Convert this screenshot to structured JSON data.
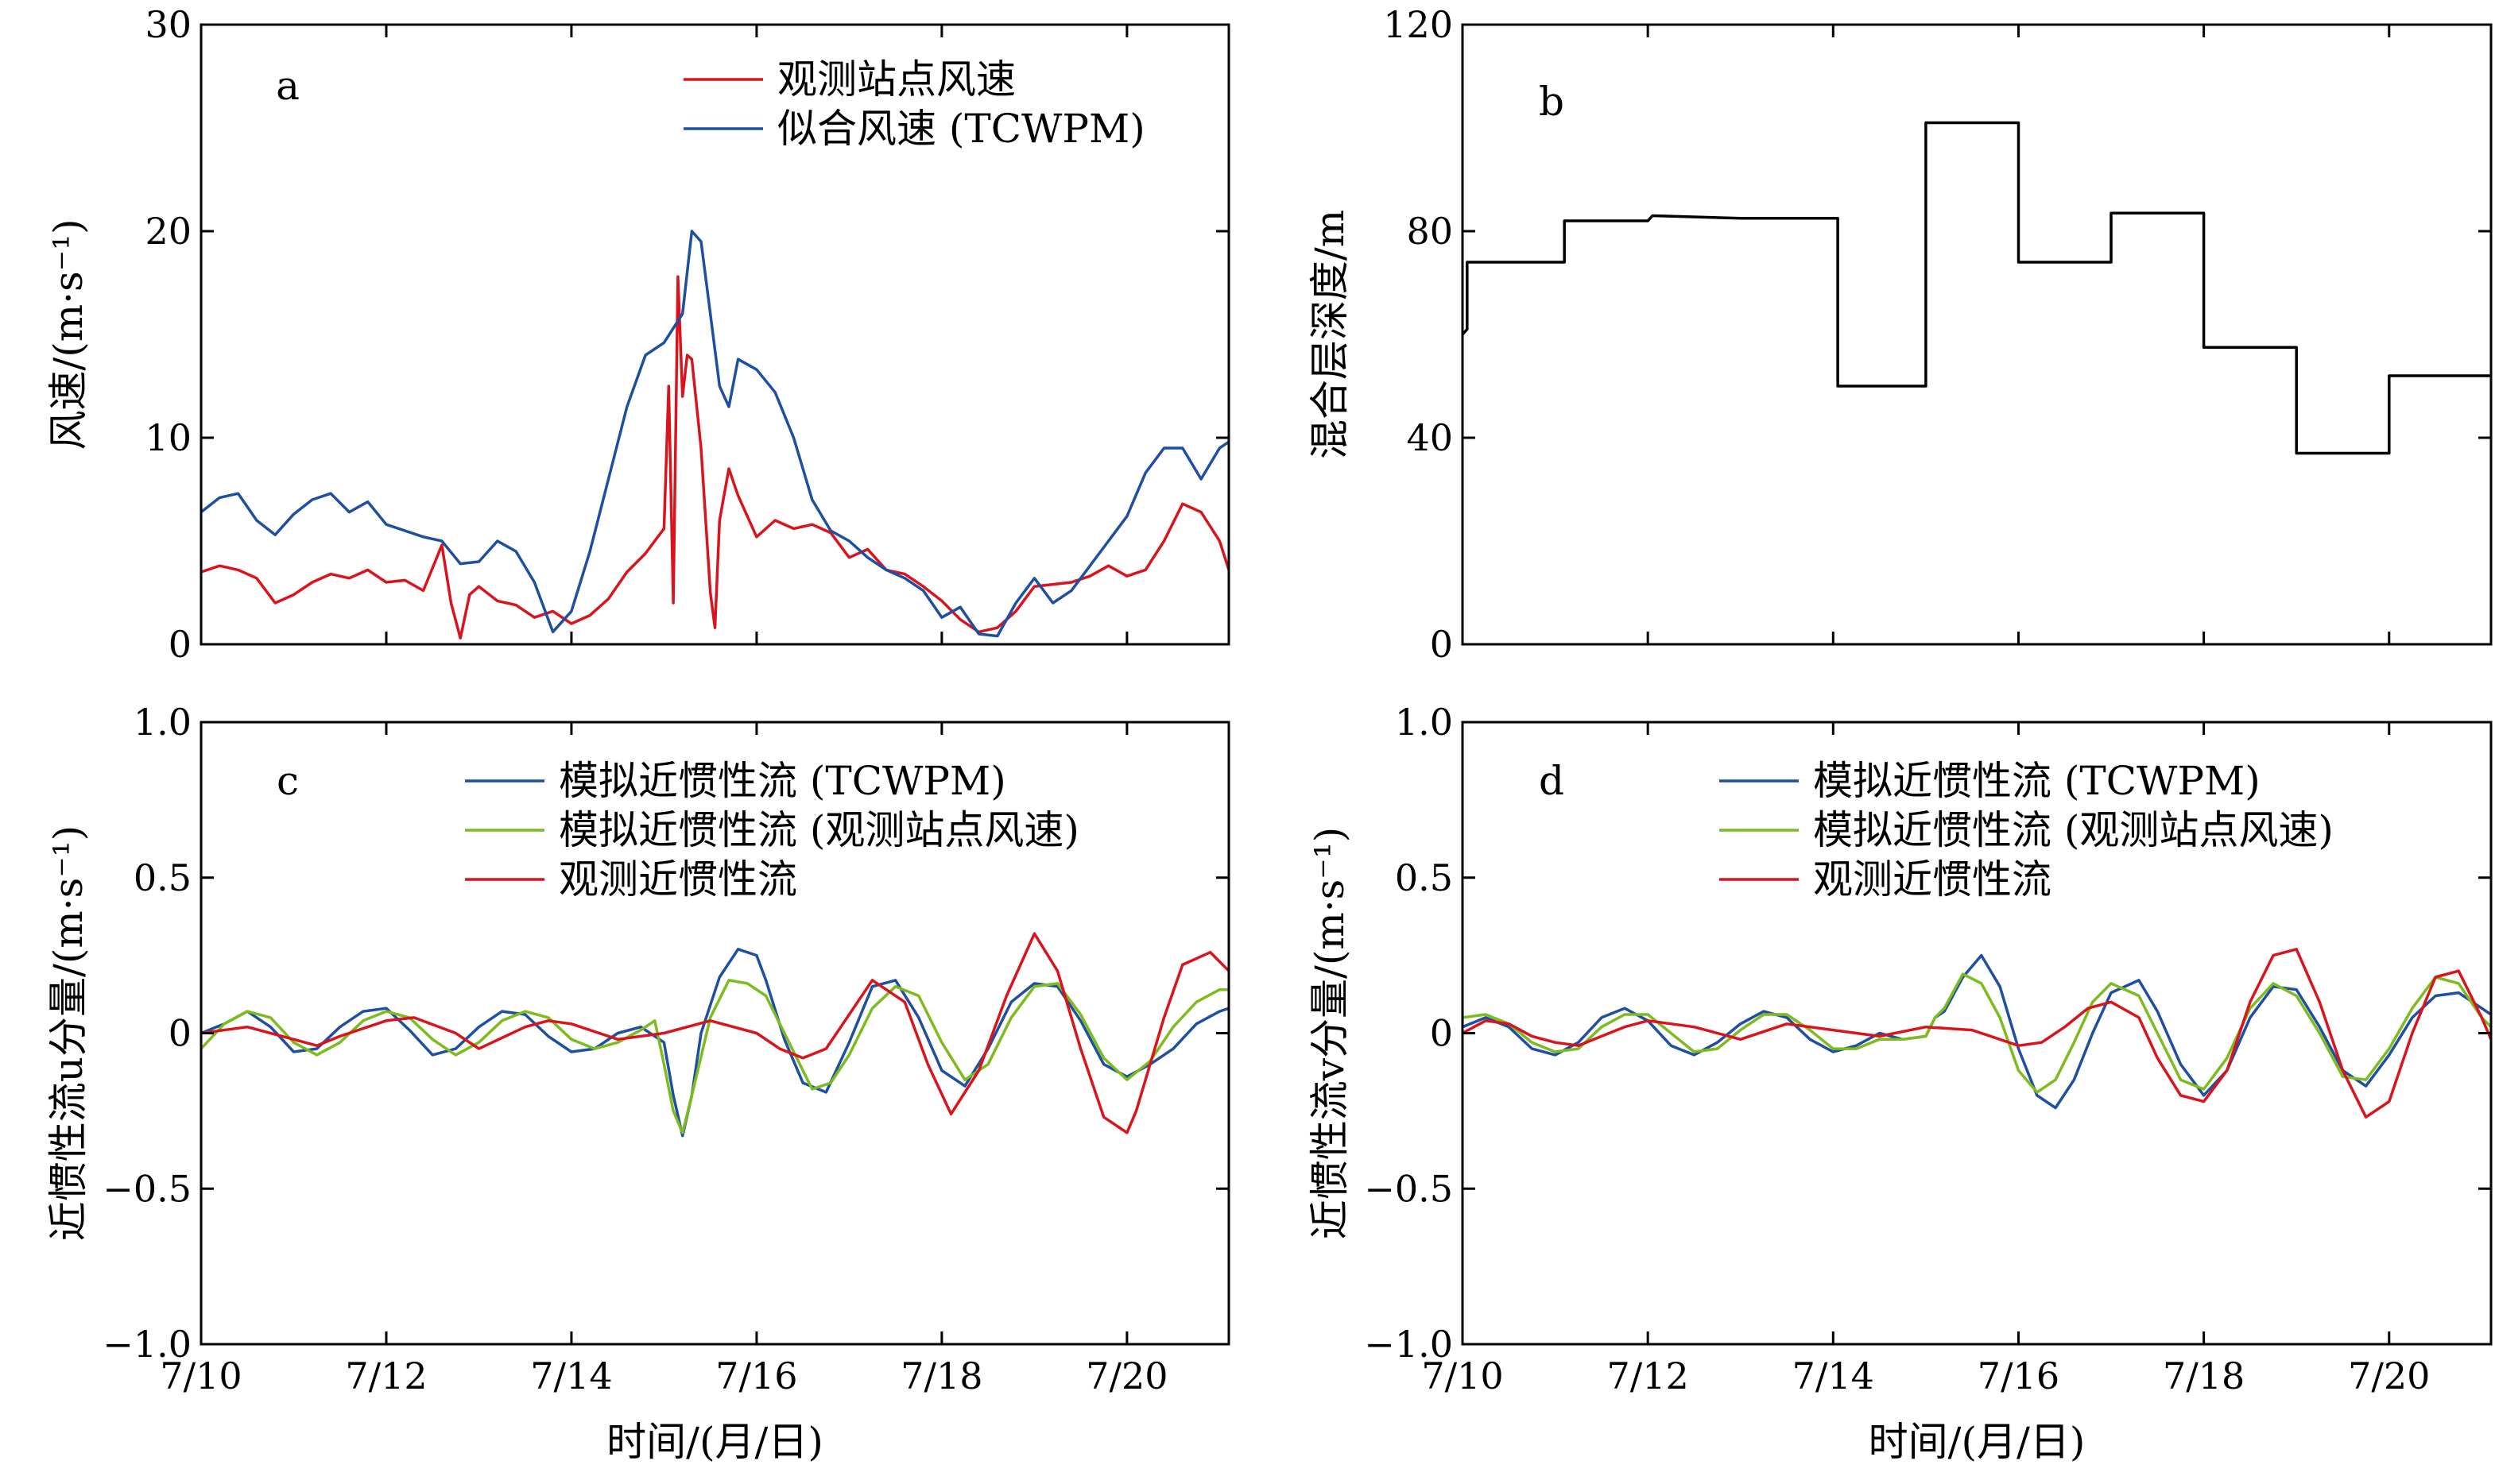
{
  "xlabel": "时间/(月/日)",
  "x_tick_labels": [
    "7/10",
    "7/12",
    "7/14",
    "7/16",
    "7/18",
    "7/20"
  ],
  "colors": {
    "observed_wind": "#d9141c",
    "tcwpm": "#1f4fa0",
    "sim_station": "#7dbb1e",
    "observed_current": "#d9141c",
    "mixed_layer": "#000000"
  },
  "chart_data": [
    {
      "panel": "a",
      "type": "line",
      "ylabel": "风速/(m·s⁻¹)",
      "ylim": [
        0,
        30
      ],
      "yticks": [
        0,
        10,
        20,
        30
      ],
      "xlim": [
        10,
        21.1
      ],
      "series": [
        {
          "name": "观测站点风速",
          "x": [
            10,
            10.2,
            10.4,
            10.6,
            10.8,
            11,
            11.2,
            11.4,
            11.6,
            11.8,
            12,
            12.2,
            12.4,
            12.6,
            12.7,
            12.8,
            12.9,
            13.0,
            13.2,
            13.4,
            13.6,
            13.8,
            14.0,
            14.2,
            14.4,
            14.6,
            14.8,
            15.0,
            15.05,
            15.1,
            15.15,
            15.2,
            15.25,
            15.3,
            15.4,
            15.5,
            15.55,
            15.6,
            15.7,
            15.8,
            16.0,
            16.2,
            16.4,
            16.6,
            16.8,
            17.0,
            17.2,
            17.4,
            17.6,
            17.8,
            18.0,
            18.2,
            18.4,
            18.6,
            18.8,
            19.0,
            19.2,
            19.4,
            19.6,
            19.8,
            20.0,
            20.2,
            20.4,
            20.6,
            20.8,
            21.0,
            21.1
          ],
          "y": [
            3.5,
            3.8,
            3.6,
            3.2,
            2.0,
            2.4,
            3.0,
            3.4,
            3.2,
            3.6,
            3.0,
            3.1,
            2.6,
            4.8,
            2.0,
            0.3,
            2.4,
            2.8,
            2.1,
            1.9,
            1.3,
            1.6,
            1.0,
            1.4,
            2.2,
            3.5,
            4.4,
            5.6,
            12.5,
            2.0,
            17.8,
            12.0,
            14.0,
            13.8,
            9.5,
            2.5,
            0.8,
            6.0,
            8.5,
            7.2,
            5.2,
            6.0,
            5.6,
            5.8,
            5.4,
            4.2,
            4.6,
            3.6,
            3.4,
            2.8,
            2.1,
            1.2,
            0.6,
            0.8,
            1.6,
            2.8,
            2.9,
            3.0,
            3.3,
            3.8,
            3.3,
            3.6,
            5.0,
            6.8,
            6.4,
            5.0,
            3.6
          ]
        },
        {
          "name": "似合风速 (TCWPM)",
          "x": [
            10,
            10.2,
            10.4,
            10.6,
            10.8,
            11,
            11.2,
            11.4,
            11.6,
            11.8,
            12,
            12.2,
            12.4,
            12.6,
            12.8,
            13.0,
            13.2,
            13.4,
            13.6,
            13.8,
            14.0,
            14.2,
            14.4,
            14.6,
            14.8,
            15.0,
            15.2,
            15.3,
            15.4,
            15.5,
            15.6,
            15.7,
            15.8,
            16.0,
            16.2,
            16.4,
            16.6,
            16.8,
            17.0,
            17.2,
            17.4,
            17.6,
            17.8,
            18.0,
            18.2,
            18.4,
            18.6,
            18.8,
            19.0,
            19.2,
            19.4,
            19.6,
            19.8,
            20.0,
            20.2,
            20.4,
            20.6,
            20.8,
            21.0,
            21.1
          ],
          "y": [
            6.4,
            7.1,
            7.3,
            6.0,
            5.3,
            6.3,
            7.0,
            7.3,
            6.4,
            6.9,
            5.8,
            5.5,
            5.2,
            5.0,
            3.9,
            4.0,
            5.0,
            4.5,
            3.0,
            0.6,
            1.6,
            4.5,
            8.0,
            11.5,
            14.0,
            14.6,
            16.0,
            20.0,
            19.5,
            16.0,
            12.5,
            11.5,
            13.8,
            13.3,
            12.2,
            10.0,
            7.0,
            5.5,
            5.0,
            4.2,
            3.6,
            3.2,
            2.6,
            1.3,
            1.8,
            0.5,
            0.4,
            2.0,
            3.2,
            2.0,
            2.6,
            3.8,
            5.0,
            6.2,
            8.3,
            9.5,
            9.5,
            8.0,
            9.5,
            9.8
          ]
        }
      ]
    },
    {
      "panel": "b",
      "type": "line",
      "ylabel": "混合层深度/m",
      "ylim": [
        0,
        120
      ],
      "yticks": [
        0,
        40,
        80,
        120
      ],
      "xlim": [
        10,
        21.1
      ],
      "series": [
        {
          "name": "",
          "x": [
            10.0,
            10.05,
            10.05,
            11.1,
            11.1,
            12.0,
            12.05,
            13.0,
            14.05,
            14.05,
            15.0,
            15.0,
            16.0,
            16.0,
            17.0,
            17.0,
            18.0,
            18.0,
            19.0,
            19.0,
            20.0,
            20.0,
            21.1
          ],
          "y": [
            60,
            61,
            74,
            74,
            82,
            82,
            83,
            82.5,
            82.5,
            50,
            50,
            101,
            101,
            74,
            74,
            83.5,
            83.5,
            57.5,
            57.5,
            37,
            37,
            52,
            52
          ]
        }
      ]
    },
    {
      "panel": "c",
      "type": "line",
      "ylabel": "近惯性流u分量/(m·s⁻¹)",
      "ylim": [
        -1.0,
        1.0
      ],
      "yticks": [
        -1.0,
        -0.5,
        0,
        0.5,
        1.0
      ],
      "xlim": [
        10,
        21.1
      ],
      "series": [
        {
          "name": "模拟近惯性流 (TCWPM)",
          "x": [
            10,
            10.25,
            10.5,
            10.75,
            11,
            11.25,
            11.5,
            11.75,
            12,
            12.25,
            12.5,
            12.75,
            13,
            13.25,
            13.5,
            13.75,
            14,
            14.25,
            14.5,
            14.75,
            15.0,
            15.1,
            15.2,
            15.3,
            15.4,
            15.6,
            15.8,
            16.0,
            16.1,
            16.3,
            16.5,
            16.75,
            17.0,
            17.25,
            17.5,
            17.75,
            18.0,
            18.25,
            18.5,
            18.75,
            19.0,
            19.25,
            19.5,
            19.75,
            20.0,
            20.25,
            20.5,
            20.75,
            21.0,
            21.1
          ],
          "y": [
            0.0,
            0.03,
            0.07,
            0.02,
            -0.06,
            -0.05,
            0.02,
            0.07,
            0.08,
            0.01,
            -0.07,
            -0.05,
            0.02,
            0.07,
            0.06,
            -0.01,
            -0.06,
            -0.05,
            0.0,
            0.02,
            -0.03,
            -0.2,
            -0.33,
            -0.2,
            0.0,
            0.18,
            0.27,
            0.25,
            0.17,
            -0.02,
            -0.16,
            -0.19,
            -0.03,
            0.15,
            0.17,
            0.05,
            -0.12,
            -0.17,
            -0.05,
            0.1,
            0.16,
            0.15,
            0.04,
            -0.1,
            -0.14,
            -0.1,
            -0.05,
            0.03,
            0.07,
            0.08
          ]
        },
        {
          "name": "模拟近惯性流 (观测站点风速)",
          "x": [
            10,
            10.25,
            10.5,
            10.75,
            11,
            11.25,
            11.5,
            11.75,
            12,
            12.25,
            12.5,
            12.75,
            13,
            13.25,
            13.5,
            13.75,
            14,
            14.25,
            14.5,
            14.75,
            14.9,
            15.0,
            15.1,
            15.2,
            15.3,
            15.5,
            15.7,
            15.9,
            16.1,
            16.3,
            16.6,
            16.8,
            17.0,
            17.25,
            17.5,
            17.75,
            18.0,
            18.25,
            18.5,
            18.75,
            19.0,
            19.25,
            19.5,
            19.75,
            20.0,
            20.25,
            20.5,
            20.75,
            21.0,
            21.1
          ],
          "y": [
            -0.05,
            0.03,
            0.07,
            0.05,
            -0.03,
            -0.07,
            -0.03,
            0.04,
            0.07,
            0.05,
            -0.02,
            -0.07,
            -0.03,
            0.04,
            0.07,
            0.05,
            -0.02,
            -0.05,
            -0.03,
            0.01,
            0.04,
            -0.1,
            -0.25,
            -0.32,
            -0.2,
            0.05,
            0.17,
            0.16,
            0.12,
            0.0,
            -0.18,
            -0.16,
            -0.07,
            0.08,
            0.15,
            0.12,
            -0.03,
            -0.15,
            -0.1,
            0.05,
            0.15,
            0.16,
            0.06,
            -0.08,
            -0.15,
            -0.09,
            0.02,
            0.1,
            0.14,
            0.14
          ]
        },
        {
          "name": "观测近惯性流",
          "x": [
            10,
            10.5,
            11,
            11.25,
            11.5,
            12,
            12.3,
            12.75,
            13,
            13.5,
            13.75,
            14,
            14.5,
            15,
            15.5,
            16,
            16.25,
            16.5,
            16.75,
            17,
            17.25,
            17.6,
            17.85,
            18.1,
            18.4,
            18.7,
            19.0,
            19.25,
            19.5,
            19.75,
            20.0,
            20.1,
            20.4,
            20.6,
            20.9,
            21.1
          ],
          "y": [
            0.0,
            0.02,
            -0.02,
            -0.04,
            -0.01,
            0.04,
            0.05,
            0.0,
            -0.05,
            0.02,
            0.04,
            0.03,
            -0.02,
            0.0,
            0.04,
            0.0,
            -0.05,
            -0.08,
            -0.05,
            0.06,
            0.17,
            0.1,
            -0.1,
            -0.26,
            -0.12,
            0.12,
            0.32,
            0.2,
            -0.05,
            -0.27,
            -0.32,
            -0.25,
            0.05,
            0.22,
            0.26,
            0.2
          ]
        }
      ]
    },
    {
      "panel": "d",
      "type": "line",
      "ylabel": "近惯性流v分量/(m·s⁻¹)",
      "ylim": [
        -1.0,
        1.0
      ],
      "yticks": [
        -1.0,
        -0.5,
        0,
        0.5,
        1.0
      ],
      "xlim": [
        10,
        21.1
      ],
      "series": [
        {
          "name": "模拟近惯性流 (TCWPM)",
          "x": [
            10,
            10.25,
            10.5,
            10.75,
            11,
            11.25,
            11.5,
            11.75,
            12,
            12.25,
            12.5,
            12.75,
            13,
            13.25,
            13.5,
            13.75,
            14,
            14.25,
            14.5,
            14.75,
            15.0,
            15.1,
            15.2,
            15.4,
            15.6,
            15.8,
            16.0,
            16.2,
            16.4,
            16.6,
            16.8,
            17.0,
            17.3,
            17.5,
            17.75,
            18.0,
            18.25,
            18.5,
            18.75,
            19.0,
            19.25,
            19.5,
            19.75,
            20.0,
            20.25,
            20.5,
            20.75,
            21.0,
            21.1
          ],
          "y": [
            0.02,
            0.05,
            0.02,
            -0.05,
            -0.07,
            -0.03,
            0.05,
            0.08,
            0.04,
            -0.04,
            -0.07,
            -0.03,
            0.03,
            0.07,
            0.05,
            -0.02,
            -0.06,
            -0.04,
            0.0,
            -0.02,
            -0.01,
            0.05,
            0.07,
            0.18,
            0.25,
            0.15,
            -0.05,
            -0.2,
            -0.24,
            -0.15,
            0.0,
            0.13,
            0.17,
            0.07,
            -0.1,
            -0.2,
            -0.12,
            0.05,
            0.15,
            0.14,
            0.02,
            -0.12,
            -0.17,
            -0.07,
            0.05,
            0.12,
            0.13,
            0.08,
            0.06
          ]
        },
        {
          "name": "模拟近惯性流 (观测站点风速)",
          "x": [
            10,
            10.25,
            10.5,
            10.75,
            11,
            11.25,
            11.5,
            11.75,
            12,
            12.25,
            12.5,
            12.75,
            13,
            13.25,
            13.5,
            13.75,
            14,
            14.25,
            14.5,
            14.75,
            15.0,
            15.1,
            15.2,
            15.4,
            15.6,
            15.8,
            16.0,
            16.2,
            16.4,
            16.6,
            16.8,
            17.0,
            17.3,
            17.5,
            17.75,
            18.0,
            18.25,
            18.5,
            18.75,
            19.0,
            19.25,
            19.5,
            19.75,
            20.0,
            20.25,
            20.5,
            20.75,
            21.0,
            21.1
          ],
          "y": [
            0.05,
            0.06,
            0.03,
            -0.03,
            -0.06,
            -0.05,
            0.02,
            0.06,
            0.06,
            0.0,
            -0.06,
            -0.05,
            0.01,
            0.06,
            0.06,
            0.01,
            -0.05,
            -0.05,
            -0.02,
            -0.02,
            -0.01,
            0.05,
            0.08,
            0.19,
            0.16,
            0.05,
            -0.12,
            -0.19,
            -0.15,
            -0.03,
            0.1,
            0.16,
            0.12,
            0.0,
            -0.15,
            -0.18,
            -0.08,
            0.08,
            0.16,
            0.12,
            0.0,
            -0.14,
            -0.15,
            -0.05,
            0.08,
            0.18,
            0.16,
            0.05,
            0.02
          ]
        },
        {
          "name": "观测近惯性流",
          "x": [
            10,
            10.25,
            10.5,
            10.75,
            11,
            11.25,
            11.5,
            11.75,
            12,
            12.5,
            13,
            13.5,
            14,
            14.5,
            15,
            15.5,
            16,
            16.25,
            16.5,
            16.75,
            17,
            17.3,
            17.5,
            17.75,
            18.0,
            18.25,
            18.5,
            18.75,
            19.0,
            19.25,
            19.5,
            19.75,
            20.0,
            20.25,
            20.5,
            20.75,
            21.0,
            21.1
          ],
          "y": [
            0.0,
            0.04,
            0.03,
            -0.01,
            -0.03,
            -0.04,
            -0.01,
            0.02,
            0.04,
            0.02,
            -0.02,
            0.03,
            0.01,
            -0.01,
            0.02,
            0.01,
            -0.04,
            -0.03,
            0.02,
            0.08,
            0.1,
            0.05,
            -0.08,
            -0.2,
            -0.22,
            -0.12,
            0.1,
            0.25,
            0.27,
            0.1,
            -0.12,
            -0.27,
            -0.22,
            0.0,
            0.18,
            0.2,
            0.05,
            -0.02
          ]
        }
      ]
    }
  ]
}
